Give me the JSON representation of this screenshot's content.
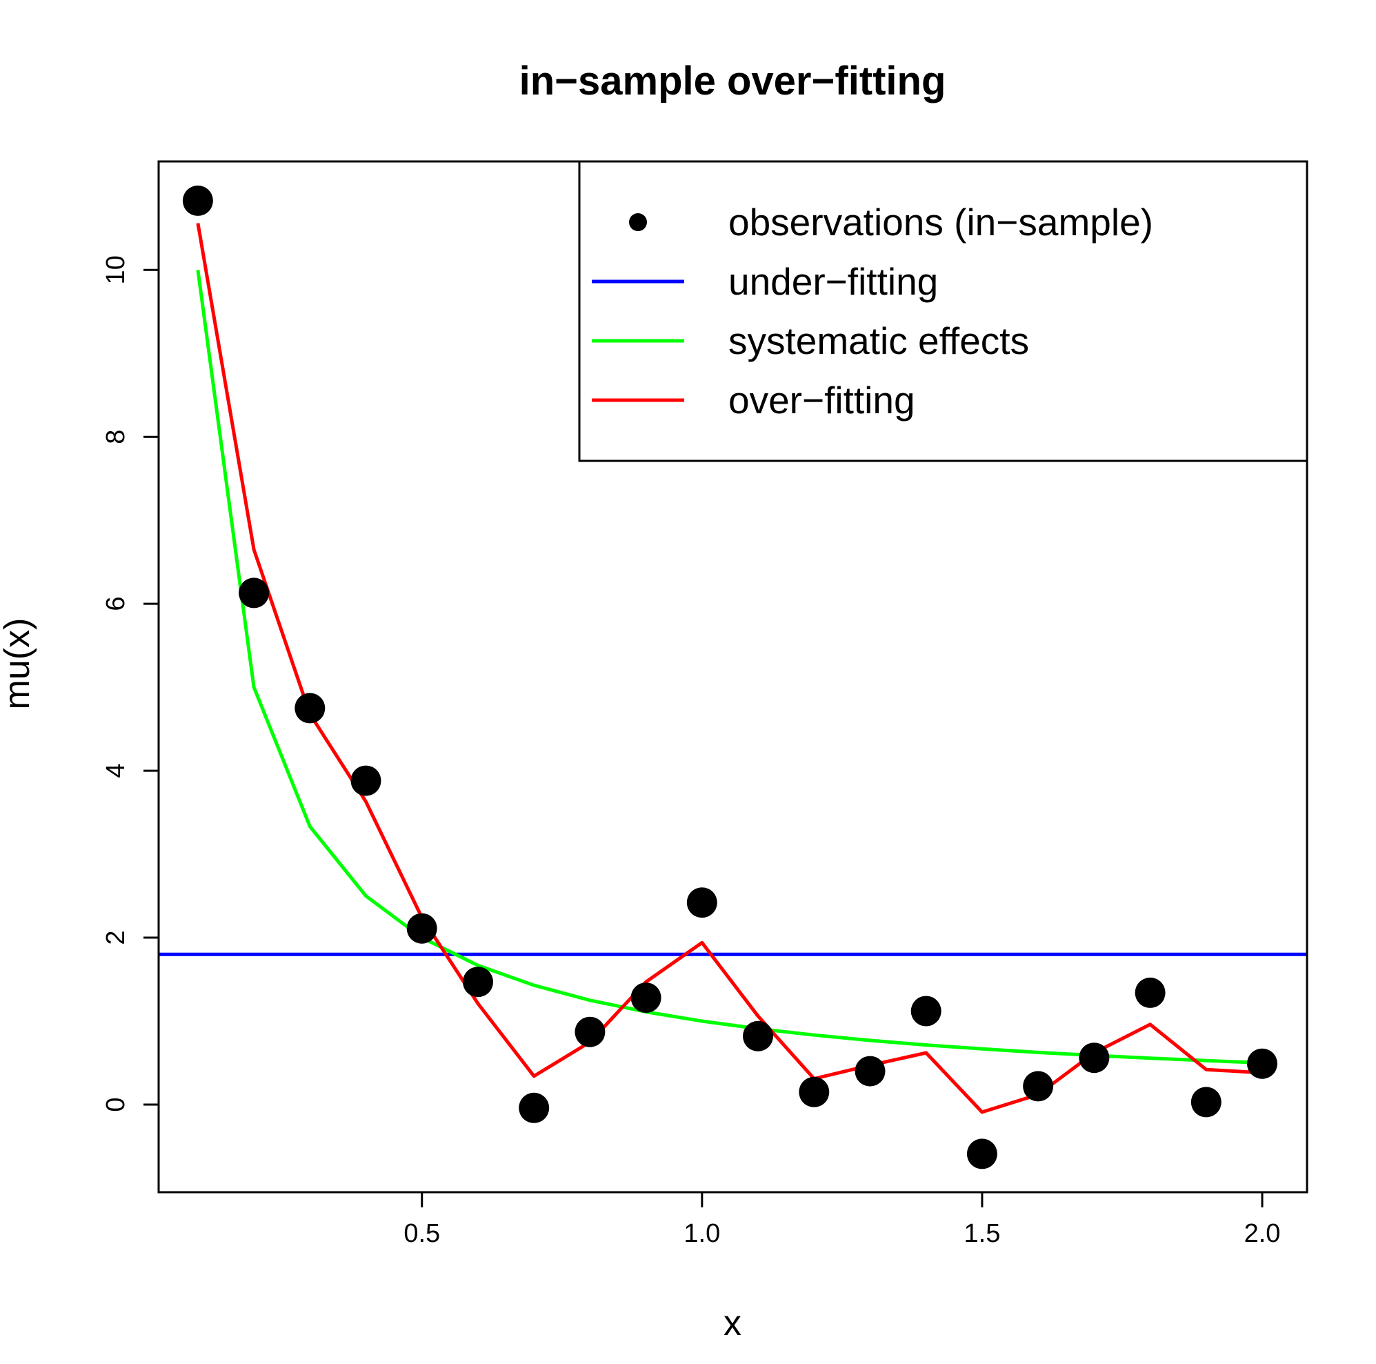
{
  "chart_data": {
    "type": "line",
    "title": "in−sample over−fitting",
    "xlabel": "x",
    "ylabel": "mu(x)",
    "xlim": [
      0.03,
      2.08
    ],
    "ylim": [
      -1.05,
      11.3
    ],
    "x_ticks": [
      {
        "value": 0.5,
        "label": "0.5"
      },
      {
        "value": 1.0,
        "label": "1.0"
      },
      {
        "value": 1.5,
        "label": "1.5"
      },
      {
        "value": 2.0,
        "label": "2.0"
      }
    ],
    "y_ticks": [
      {
        "value": 0,
        "label": "0"
      },
      {
        "value": 2,
        "label": "2"
      },
      {
        "value": 4,
        "label": "4"
      },
      {
        "value": 6,
        "label": "6"
      },
      {
        "value": 8,
        "label": "8"
      },
      {
        "value": 10,
        "label": "10"
      }
    ],
    "grid": false,
    "legend_position": "top-right",
    "series": [
      {
        "name": "observations (in−sample)",
        "kind": "points",
        "color": "#000000",
        "x": [
          0.1,
          0.2,
          0.3,
          0.4,
          0.5,
          0.6,
          0.7,
          0.8,
          0.9,
          1.0,
          1.1,
          1.2,
          1.3,
          1.4,
          1.5,
          1.6,
          1.7,
          1.8,
          1.9,
          2.0
        ],
        "y": [
          10.83,
          6.13,
          4.75,
          3.88,
          2.11,
          1.47,
          -0.04,
          0.87,
          1.28,
          2.42,
          0.82,
          0.15,
          0.4,
          1.12,
          -0.59,
          0.22,
          0.56,
          1.34,
          0.03,
          0.49
        ]
      },
      {
        "name": "under−fitting",
        "kind": "line",
        "color": "#0000ff",
        "x": [
          0.03,
          2.08
        ],
        "y": [
          1.8,
          1.8
        ]
      },
      {
        "name": "systematic effects",
        "kind": "line",
        "color": "#00ff00",
        "x": [
          0.1,
          0.2,
          0.3,
          0.4,
          0.5,
          0.6,
          0.7,
          0.8,
          0.9,
          1.0,
          1.1,
          1.2,
          1.3,
          1.4,
          1.5,
          1.6,
          1.7,
          1.8,
          1.9,
          2.0
        ],
        "y": [
          10.0,
          5.0,
          3.333,
          2.5,
          2.0,
          1.667,
          1.429,
          1.25,
          1.111,
          1.0,
          0.909,
          0.833,
          0.769,
          0.714,
          0.667,
          0.625,
          0.588,
          0.556,
          0.526,
          0.5
        ]
      },
      {
        "name": "over−fitting",
        "kind": "line",
        "color": "#ff0000",
        "x": [
          0.1,
          0.2,
          0.3,
          0.4,
          0.5,
          0.6,
          0.7,
          0.8,
          0.9,
          1.0,
          1.1,
          1.2,
          1.3,
          1.4,
          1.5,
          1.6,
          1.7,
          1.8,
          1.9,
          2.0
        ],
        "y": [
          10.56,
          6.65,
          4.68,
          3.63,
          2.24,
          1.21,
          0.34,
          0.75,
          1.47,
          1.94,
          1.06,
          0.31,
          0.47,
          0.62,
          -0.09,
          0.12,
          0.62,
          0.96,
          0.42,
          0.38
        ]
      }
    ]
  }
}
